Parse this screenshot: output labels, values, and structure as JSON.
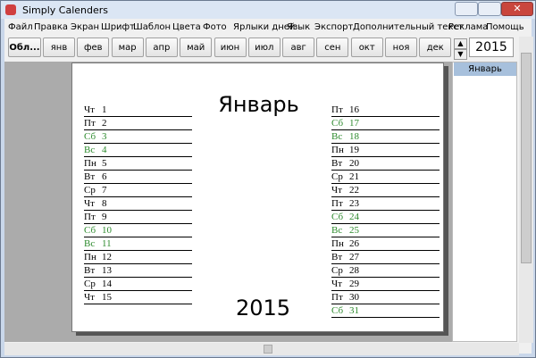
{
  "window": {
    "title": "Simply Calenders"
  },
  "menu": [
    "Файл",
    "Правка",
    "Экран",
    "Шрифт",
    "Шаблон",
    "Цвета",
    "Фото",
    "Ярлыки дней",
    "Язык",
    "Экспорт",
    "Дополнительный текст",
    "Реклама",
    "Помощь"
  ],
  "toolbar": {
    "cover": "Обл...",
    "months": [
      "янв",
      "фев",
      "мар",
      "апр",
      "май",
      "июн",
      "июл",
      "авг",
      "сен",
      "окт",
      "ноя",
      "дек"
    ],
    "year": "2015",
    "month_list": [
      "Январь"
    ]
  },
  "page": {
    "title": "Январь",
    "year": "2015",
    "columns": [
      [
        {
          "weekday": "Чт",
          "day": "1",
          "weekend": false
        },
        {
          "weekday": "Пт",
          "day": "2",
          "weekend": false
        },
        {
          "weekday": "Сб",
          "day": "3",
          "weekend": true
        },
        {
          "weekday": "Вс",
          "day": "4",
          "weekend": true
        },
        {
          "weekday": "Пн",
          "day": "5",
          "weekend": false
        },
        {
          "weekday": "Вт",
          "day": "6",
          "weekend": false
        },
        {
          "weekday": "Ср",
          "day": "7",
          "weekend": false
        },
        {
          "weekday": "Чт",
          "day": "8",
          "weekend": false
        },
        {
          "weekday": "Пт",
          "day": "9",
          "weekend": false
        },
        {
          "weekday": "Сб",
          "day": "10",
          "weekend": true
        },
        {
          "weekday": "Вс",
          "day": "11",
          "weekend": true
        },
        {
          "weekday": "Пн",
          "day": "12",
          "weekend": false
        },
        {
          "weekday": "Вт",
          "day": "13",
          "weekend": false
        },
        {
          "weekday": "Ср",
          "day": "14",
          "weekend": false
        },
        {
          "weekday": "Чт",
          "day": "15",
          "weekend": false
        }
      ],
      [
        {
          "weekday": "Пт",
          "day": "16",
          "weekend": false
        },
        {
          "weekday": "Сб",
          "day": "17",
          "weekend": true
        },
        {
          "weekday": "Вс",
          "day": "18",
          "weekend": true
        },
        {
          "weekday": "Пн",
          "day": "19",
          "weekend": false
        },
        {
          "weekday": "Вт",
          "day": "20",
          "weekend": false
        },
        {
          "weekday": "Ср",
          "day": "21",
          "weekend": false
        },
        {
          "weekday": "Чт",
          "day": "22",
          "weekend": false
        },
        {
          "weekday": "Пт",
          "day": "23",
          "weekend": false
        },
        {
          "weekday": "Сб",
          "day": "24",
          "weekend": true
        },
        {
          "weekday": "Вс",
          "day": "25",
          "weekend": true
        },
        {
          "weekday": "Пн",
          "day": "26",
          "weekend": false
        },
        {
          "weekday": "Вт",
          "day": "27",
          "weekend": false
        },
        {
          "weekday": "Ср",
          "day": "28",
          "weekend": false
        },
        {
          "weekday": "Чт",
          "day": "29",
          "weekend": false
        },
        {
          "weekday": "Пт",
          "day": "30",
          "weekend": false
        },
        {
          "weekday": "Сб",
          "day": "31",
          "weekend": true
        }
      ]
    ]
  }
}
